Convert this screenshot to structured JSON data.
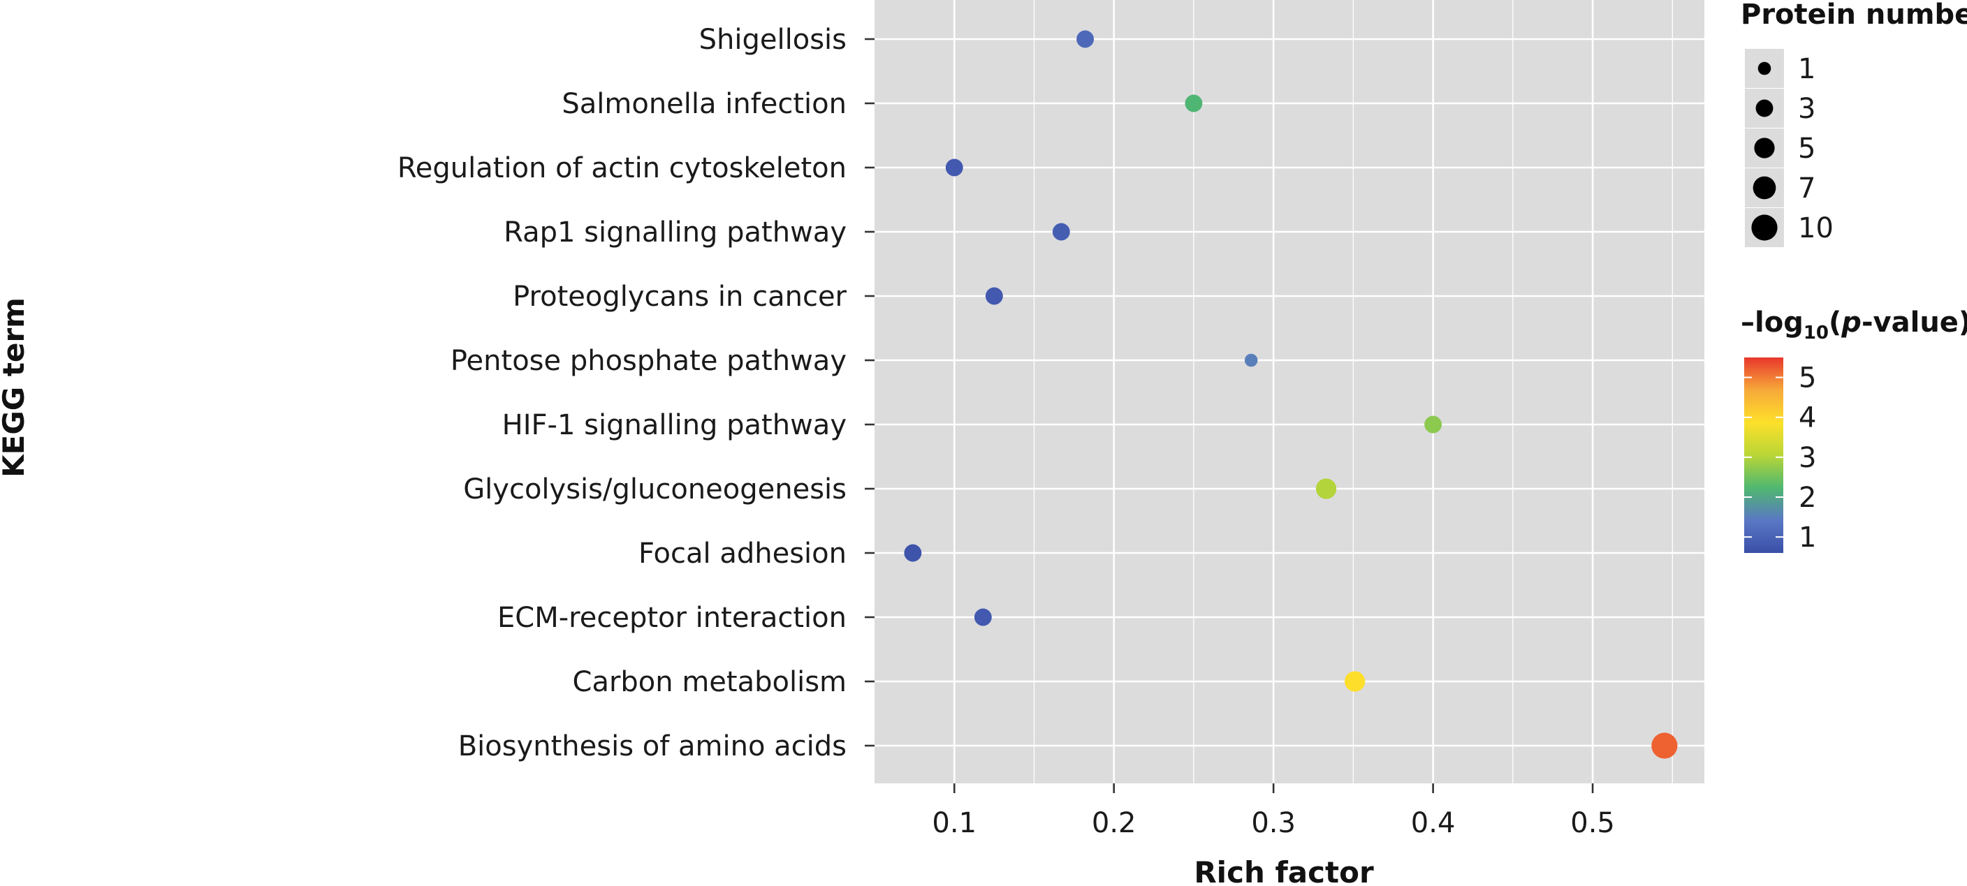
{
  "chart_data": {
    "type": "scatter",
    "xlabel": "Rich factor",
    "ylabel": "KEGG term",
    "xlim": [
      0.05,
      0.57
    ],
    "x_ticks": [
      0.1,
      0.2,
      0.3,
      0.4,
      0.5
    ],
    "x_tick_labels": [
      "0.1",
      "0.2",
      "0.3",
      "0.4",
      "0.5"
    ],
    "categories": [
      "Shigellosis",
      "Salmonella infection",
      "Regulation of actin cytoskeleton",
      "Rap1 signalling pathway",
      "Proteoglycans in cancer",
      "Pentose phosphate pathway",
      "HIF-1 signalling pathway",
      "Glycolysis/gluconeogenesis",
      "Focal adhesion",
      "ECM-receptor interaction",
      "Carbon metabolism",
      "Biosynthesis of amino acids"
    ],
    "points": [
      {
        "term": "Shigellosis",
        "x": 0.182,
        "protein_number": 3,
        "neg_log10_p": 1.1
      },
      {
        "term": "Salmonella infection",
        "x": 0.25,
        "protein_number": 3,
        "neg_log10_p": 2.2
      },
      {
        "term": "Regulation of actin cytoskeleton",
        "x": 0.1,
        "protein_number": 3,
        "neg_log10_p": 0.8
      },
      {
        "term": "Rap1 signalling pathway",
        "x": 0.167,
        "protein_number": 3,
        "neg_log10_p": 0.9
      },
      {
        "term": "Proteoglycans in cancer",
        "x": 0.125,
        "protein_number": 3,
        "neg_log10_p": 0.8
      },
      {
        "term": "Pentose phosphate pathway",
        "x": 0.286,
        "protein_number": 1,
        "neg_log10_p": 1.5
      },
      {
        "term": "HIF-1 signalling pathway",
        "x": 0.4,
        "protein_number": 3,
        "neg_log10_p": 2.7
      },
      {
        "term": "Glycolysis/gluconeogenesis",
        "x": 0.333,
        "protein_number": 5,
        "neg_log10_p": 3.0
      },
      {
        "term": "Focal adhesion",
        "x": 0.074,
        "protein_number": 3,
        "neg_log10_p": 0.7
      },
      {
        "term": "ECM-receptor interaction",
        "x": 0.118,
        "protein_number": 3,
        "neg_log10_p": 0.8
      },
      {
        "term": "Carbon metabolism",
        "x": 0.351,
        "protein_number": 5,
        "neg_log10_p": 3.9
      },
      {
        "term": "Biosynthesis of amino acids",
        "x": 0.545,
        "protein_number": 10,
        "neg_log10_p": 5.2
      }
    ],
    "size_legend": {
      "title": "Protein number",
      "values": [
        1,
        3,
        5,
        7,
        10
      ],
      "labels": [
        "1",
        "3",
        "5",
        "7",
        "10"
      ]
    },
    "color_legend": {
      "title_prefix": "–log",
      "title_subscript": "10",
      "title_open": "(",
      "title_italic": "p",
      "title_suffix": "-value)",
      "range": [
        0.6,
        5.5
      ],
      "ticks": [
        1,
        2,
        3,
        4,
        5
      ],
      "tick_labels": [
        "1",
        "2",
        "3",
        "4",
        "5"
      ],
      "colors": [
        "#3a4fa8",
        "#5a78c4",
        "#4fb870",
        "#b9d637",
        "#fde02a",
        "#f7a93a",
        "#e8372c"
      ]
    },
    "grid": true,
    "legend_position": "right",
    "panel_color": "#dcdcdd",
    "grid_color": "#ffffff"
  }
}
